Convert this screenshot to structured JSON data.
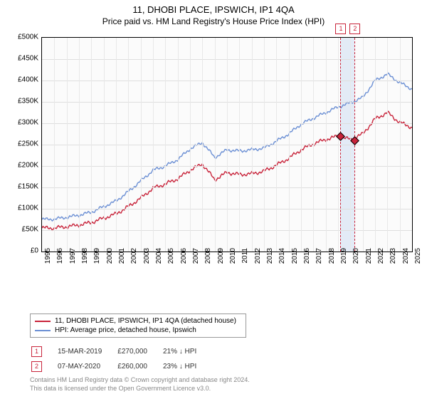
{
  "title": "11, DHOBI PLACE, IPSWICH, IP1 4QA",
  "subtitle": "Price paid vs. HM Land Registry's House Price Index (HPI)",
  "chart": {
    "type": "line",
    "background_color": "#fbfbfb",
    "grid_color": "#dedede",
    "border_color": "#000000",
    "ylim": [
      0,
      500000
    ],
    "ytick_step": 50000,
    "ytick_labels": [
      "£0",
      "£50K",
      "£100K",
      "£150K",
      "£200K",
      "£250K",
      "£300K",
      "£350K",
      "£400K",
      "£450K",
      "£500K"
    ],
    "x_years": [
      1995,
      1996,
      1997,
      1998,
      1999,
      2000,
      2001,
      2002,
      2003,
      2004,
      2005,
      2006,
      2007,
      2008,
      2009,
      2010,
      2011,
      2012,
      2013,
      2014,
      2015,
      2016,
      2017,
      2018,
      2019,
      2020,
      2021,
      2022,
      2023,
      2024,
      2025
    ],
    "highlight_band": {
      "from_year": 2019.2,
      "to_year": 2020.35,
      "color": "#dde7f5"
    },
    "series": [
      {
        "name": "hpi",
        "label": "HPI: Average price, detached house, Ipswich",
        "color": "#6b8fd4",
        "line_width": 1.4,
        "points_yearly": [
          75,
          76,
          80,
          85,
          92,
          105,
          118,
          140,
          165,
          190,
          200,
          215,
          240,
          255,
          220,
          238,
          235,
          238,
          242,
          258,
          275,
          298,
          312,
          325,
          338,
          348,
          360,
          400,
          415,
          395,
          380
        ]
      },
      {
        "name": "price_paid",
        "label": "11, DHOBI PLACE, IPSWICH, IP1 4QA (detached house)",
        "color": "#c8233a",
        "line_width": 1.4,
        "points_yearly": [
          55,
          55,
          58,
          62,
          68,
          78,
          88,
          105,
          125,
          148,
          158,
          170,
          190,
          205,
          168,
          185,
          180,
          182,
          188,
          202,
          218,
          238,
          252,
          262,
          270,
          262,
          275,
          310,
          325,
          302,
          290
        ]
      }
    ],
    "markers": [
      {
        "num": "1",
        "year": 2019.2,
        "value": 270000
      },
      {
        "num": "2",
        "year": 2020.35,
        "value": 260000
      }
    ]
  },
  "legend": {
    "items": [
      {
        "color": "#c8233a",
        "label": "11, DHOBI PLACE, IPSWICH, IP1 4QA (detached house)"
      },
      {
        "color": "#6b8fd4",
        "label": "HPI: Average price, detached house, Ipswich"
      }
    ]
  },
  "transactions": [
    {
      "num": "1",
      "date": "15-MAR-2019",
      "price": "£270,000",
      "diff": "21% ↓ HPI"
    },
    {
      "num": "2",
      "date": "07-MAY-2020",
      "price": "£260,000",
      "diff": "23% ↓ HPI"
    }
  ],
  "footer_line1": "Contains HM Land Registry data © Crown copyright and database right 2024.",
  "footer_line2": "This data is licensed under the Open Government Licence v3.0."
}
